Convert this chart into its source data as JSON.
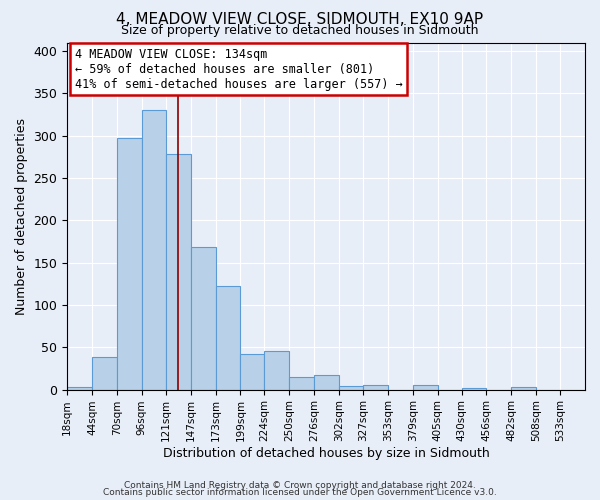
{
  "title": "4, MEADOW VIEW CLOSE, SIDMOUTH, EX10 9AP",
  "subtitle": "Size of property relative to detached houses in Sidmouth",
  "xlabel": "Distribution of detached houses by size in Sidmouth",
  "ylabel": "Number of detached properties",
  "bar_labels": [
    "18sqm",
    "44sqm",
    "70sqm",
    "96sqm",
    "121sqm",
    "147sqm",
    "173sqm",
    "199sqm",
    "224sqm",
    "250sqm",
    "276sqm",
    "302sqm",
    "327sqm",
    "353sqm",
    "379sqm",
    "405sqm",
    "430sqm",
    "456sqm",
    "482sqm",
    "508sqm",
    "533sqm"
  ],
  "bar_values": [
    3,
    38,
    297,
    330,
    278,
    168,
    122,
    42,
    46,
    15,
    17,
    4,
    5,
    0,
    6,
    0,
    2,
    0,
    3,
    0,
    0
  ],
  "bar_color": "#b8d0e8",
  "bar_edge_color": "#5b9bd5",
  "property_line_x": 134,
  "bin_edges": [
    18,
    44,
    70,
    96,
    121,
    147,
    173,
    199,
    224,
    250,
    276,
    302,
    327,
    353,
    379,
    405,
    430,
    456,
    482,
    508,
    533,
    559
  ],
  "property_line_color": "#8b0000",
  "annotation_text": "4 MEADOW VIEW CLOSE: 134sqm\n← 59% of detached houses are smaller (801)\n41% of semi-detached houses are larger (557) →",
  "annotation_box_color": "#ffffff",
  "annotation_box_edge_color": "#cc0000",
  "ylim": [
    0,
    410
  ],
  "yticks": [
    0,
    50,
    100,
    150,
    200,
    250,
    300,
    350,
    400
  ],
  "background_color": "#e8eef8",
  "grid_color": "#ffffff",
  "footer_line1": "Contains HM Land Registry data © Crown copyright and database right 2024.",
  "footer_line2": "Contains public sector information licensed under the Open Government Licence v3.0."
}
